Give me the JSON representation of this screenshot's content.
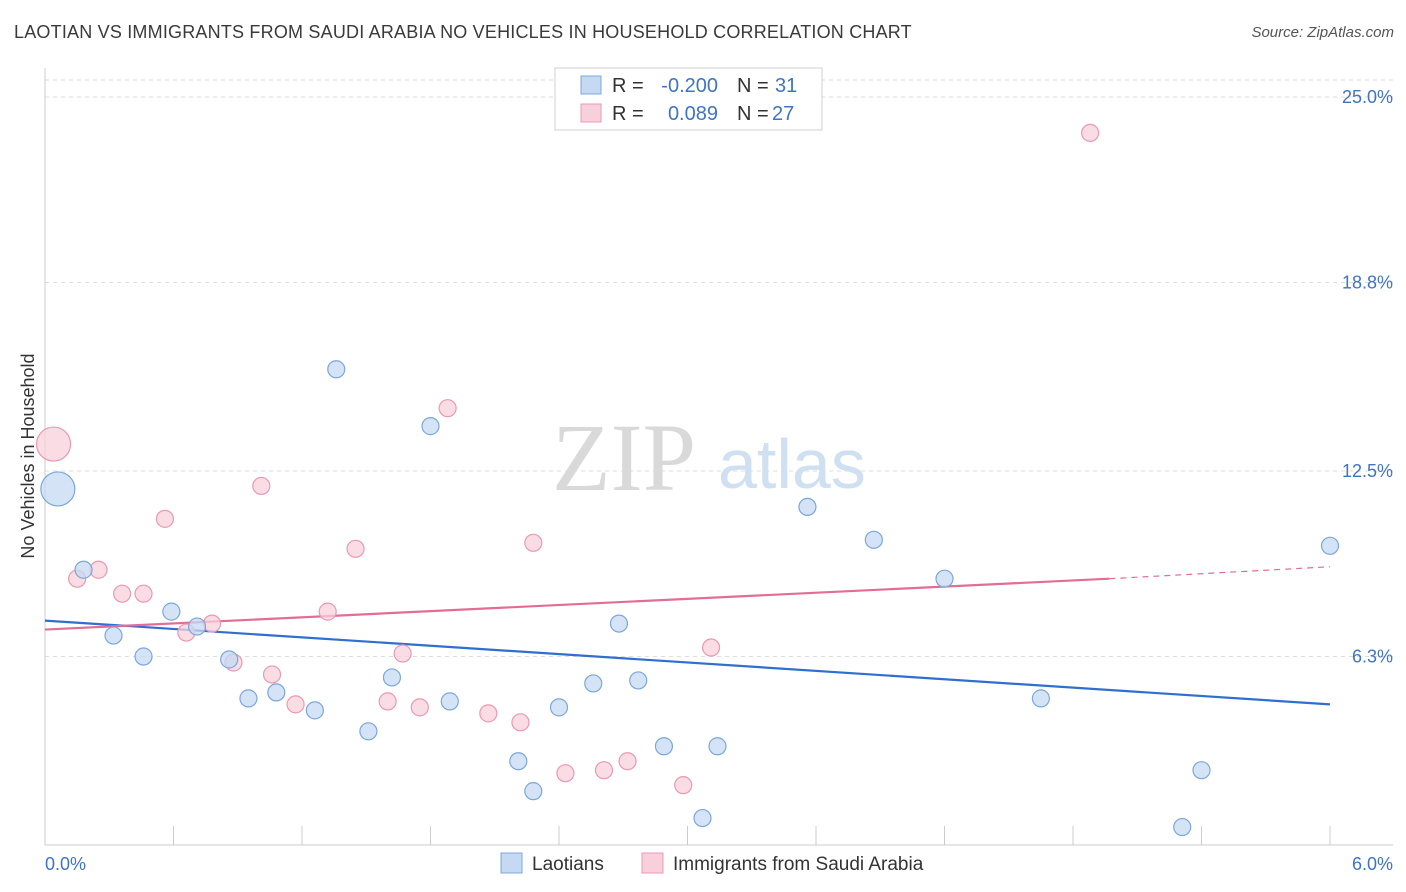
{
  "title": "LAOTIAN VS IMMIGRANTS FROM SAUDI ARABIA NO VEHICLES IN HOUSEHOLD CORRELATION CHART",
  "source": "Source: ZipAtlas.com",
  "watermark": {
    "zip": "ZIP",
    "atlas": "atlas"
  },
  "colors": {
    "blue_fill": "#c5d9f3",
    "blue_stroke": "#7ba7dc",
    "blue_line": "#2f6fcf",
    "pink_fill": "#f8d0dc",
    "pink_stroke": "#eb98b3",
    "pink_line": "#e26d95",
    "tick_text": "#3f74c4",
    "grid": "#dddddd"
  },
  "legend": {
    "rows": [
      {
        "r_label": "R =",
        "r_value": "-0.200",
        "n_label": "N =",
        "n_value": "31"
      },
      {
        "r_label": "R =",
        "r_value": "0.089",
        "n_label": "N =",
        "n_value": "27"
      }
    ]
  },
  "bottom_legend": [
    "Laotians",
    "Immigrants from Saudi Arabia"
  ],
  "chart_data": {
    "type": "scatter",
    "title": "LAOTIAN VS IMMIGRANTS FROM SAUDI ARABIA NO VEHICLES IN HOUSEHOLD CORRELATION CHART",
    "xlabel": "",
    "ylabel": "No Vehicles in Household",
    "xlim": [
      0,
      6.0
    ],
    "ylim": [
      0,
      25.0
    ],
    "x_tick_labels": [
      "0.0%",
      "6.0%"
    ],
    "y_ticks": [
      6.3,
      12.5,
      18.8,
      25.0
    ],
    "y_tick_labels": [
      "6.3%",
      "12.5%",
      "18.8%",
      "25.0%"
    ],
    "grid": "horizontal dashed",
    "legend_placement": "top-center",
    "series": [
      {
        "name": "Laotians",
        "color": "#c5d9f3",
        "points": [
          {
            "x": 0.06,
            "y": 11.9,
            "size": "large"
          },
          {
            "x": 0.18,
            "y": 9.2
          },
          {
            "x": 0.32,
            "y": 7.0
          },
          {
            "x": 0.46,
            "y": 6.3
          },
          {
            "x": 0.59,
            "y": 7.8
          },
          {
            "x": 0.71,
            "y": 7.3
          },
          {
            "x": 0.86,
            "y": 6.2
          },
          {
            "x": 0.95,
            "y": 4.9
          },
          {
            "x": 1.08,
            "y": 5.1
          },
          {
            "x": 1.26,
            "y": 4.5
          },
          {
            "x": 1.36,
            "y": 15.9
          },
          {
            "x": 1.51,
            "y": 3.8
          },
          {
            "x": 1.62,
            "y": 5.6
          },
          {
            "x": 1.8,
            "y": 14.0
          },
          {
            "x": 1.89,
            "y": 4.8
          },
          {
            "x": 2.21,
            "y": 2.8
          },
          {
            "x": 2.28,
            "y": 1.8
          },
          {
            "x": 2.4,
            "y": 4.6
          },
          {
            "x": 2.56,
            "y": 5.4
          },
          {
            "x": 2.68,
            "y": 7.4
          },
          {
            "x": 2.77,
            "y": 5.5
          },
          {
            "x": 2.89,
            "y": 3.3
          },
          {
            "x": 3.07,
            "y": 0.9
          },
          {
            "x": 3.14,
            "y": 3.3
          },
          {
            "x": 3.56,
            "y": 11.3
          },
          {
            "x": 3.87,
            "y": 10.2
          },
          {
            "x": 4.2,
            "y": 8.9
          },
          {
            "x": 4.65,
            "y": 4.9
          },
          {
            "x": 5.31,
            "y": 0.6
          },
          {
            "x": 5.4,
            "y": 2.5
          },
          {
            "x": 6.0,
            "y": 10.0
          }
        ],
        "trend": {
          "x0": 0.0,
          "y0": 7.5,
          "x1": 6.0,
          "y1": 4.7
        }
      },
      {
        "name": "Immigrants from Saudi Arabia",
        "color": "#f8d0dc",
        "points": [
          {
            "x": 0.04,
            "y": 13.4,
            "size": "large"
          },
          {
            "x": 0.15,
            "y": 8.9
          },
          {
            "x": 0.25,
            "y": 9.2
          },
          {
            "x": 0.36,
            "y": 8.4
          },
          {
            "x": 0.46,
            "y": 8.4
          },
          {
            "x": 0.56,
            "y": 10.9
          },
          {
            "x": 0.66,
            "y": 7.1
          },
          {
            "x": 0.78,
            "y": 7.4
          },
          {
            "x": 0.88,
            "y": 6.1
          },
          {
            "x": 1.01,
            "y": 12.0
          },
          {
            "x": 1.06,
            "y": 5.7
          },
          {
            "x": 1.17,
            "y": 4.7
          },
          {
            "x": 1.32,
            "y": 7.8
          },
          {
            "x": 1.45,
            "y": 9.9
          },
          {
            "x": 1.6,
            "y": 4.8
          },
          {
            "x": 1.67,
            "y": 6.4
          },
          {
            "x": 1.75,
            "y": 4.6
          },
          {
            "x": 1.88,
            "y": 14.6
          },
          {
            "x": 2.07,
            "y": 4.4
          },
          {
            "x": 2.22,
            "y": 4.1
          },
          {
            "x": 2.28,
            "y": 10.1
          },
          {
            "x": 2.43,
            "y": 2.4
          },
          {
            "x": 2.61,
            "y": 2.5
          },
          {
            "x": 2.72,
            "y": 2.8
          },
          {
            "x": 2.98,
            "y": 2.0
          },
          {
            "x": 3.11,
            "y": 6.6
          },
          {
            "x": 4.88,
            "y": 23.8
          }
        ],
        "trend": {
          "x0": 0.0,
          "y0": 7.2,
          "x1": 4.97,
          "y1": 8.9,
          "dashed_to_x": 6.0,
          "dashed_to_y": 9.3
        }
      }
    ]
  }
}
